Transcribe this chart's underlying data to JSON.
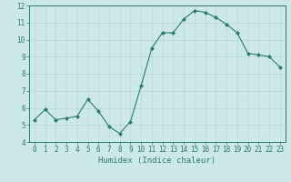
{
  "x": [
    0,
    1,
    2,
    3,
    4,
    5,
    6,
    7,
    8,
    9,
    10,
    11,
    12,
    13,
    14,
    15,
    16,
    17,
    18,
    19,
    20,
    21,
    22,
    23
  ],
  "y": [
    5.3,
    5.9,
    5.3,
    5.4,
    5.5,
    6.5,
    5.8,
    4.9,
    4.5,
    5.2,
    7.3,
    9.5,
    10.4,
    10.4,
    11.2,
    11.7,
    11.6,
    11.3,
    10.9,
    10.4,
    9.2,
    9.1,
    9.0,
    8.4
  ],
  "line_color": "#2d7a6e",
  "marker": "D",
  "marker_size": 2.0,
  "bg_color": "#cce8e8",
  "grid_color": "#b8d4d4",
  "xlabel": "Humidex (Indice chaleur)",
  "ylim": [
    4,
    12
  ],
  "xlim": [
    -0.5,
    23.5
  ],
  "yticks": [
    4,
    5,
    6,
    7,
    8,
    9,
    10,
    11,
    12
  ],
  "xticks": [
    0,
    1,
    2,
    3,
    4,
    5,
    6,
    7,
    8,
    9,
    10,
    11,
    12,
    13,
    14,
    15,
    16,
    17,
    18,
    19,
    20,
    21,
    22,
    23
  ],
  "tick_color": "#2d7a6e",
  "label_fontsize": 6.5,
  "tick_fontsize": 5.5,
  "linewidth": 0.8
}
